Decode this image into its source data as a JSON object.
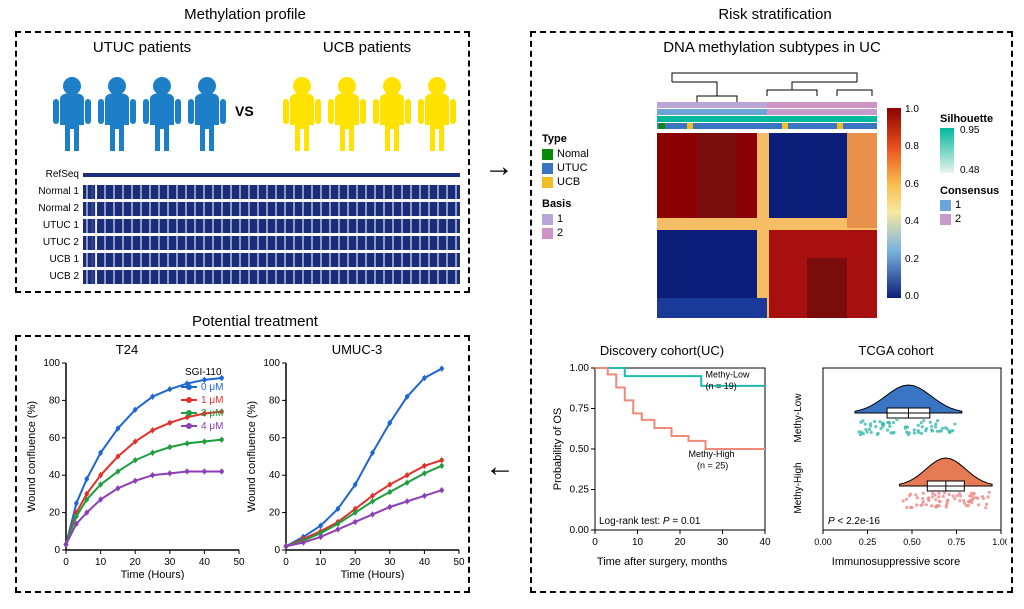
{
  "titles": {
    "methylation": "Methylation profile",
    "risk": "Risk stratification",
    "treatment": "Potential treatment",
    "utuc": "UTUC patients",
    "ucb": "UCB patients",
    "vs": "VS",
    "subtypes": "DNA methylation subtypes in UC"
  },
  "tracks": {
    "labels": [
      "RefSeq",
      "Normal 1",
      "Normal 2",
      "UTUC 1",
      "UTUC 2",
      "UCB 1",
      "UCB 2"
    ]
  },
  "people": {
    "utuc_color": "#1e7fc9",
    "ucb_color": "#ffe200"
  },
  "heatmap": {
    "type_label": "Type",
    "basis_label": "Basis",
    "silhouette_label": "Silhouette",
    "consensus_label": "Consensus",
    "type_items": [
      {
        "label": "Nomal",
        "color": "#0a8a0a"
      },
      {
        "label": "UTUC",
        "color": "#3a75c4"
      },
      {
        "label": "UCB",
        "color": "#f0bd27"
      }
    ],
    "basis_items": [
      {
        "label": "1",
        "color": "#b9a6d6"
      },
      {
        "label": "2",
        "color": "#cf94c6"
      }
    ],
    "consensus_items": [
      {
        "label": "1",
        "color": "#6da5d9"
      },
      {
        "label": "2",
        "color": "#c89acb"
      }
    ],
    "silhouette_vals": [
      "0.95",
      "0.48"
    ],
    "colorbar": {
      "ticks": [
        "1.0",
        "0.8",
        "0.6",
        "0.4",
        "0.2",
        "0.0"
      ],
      "colors": [
        "#8b0000",
        "#e84d1a",
        "#f9bd4f",
        "#f6e8a0",
        "#7ab3e0",
        "#0b1f7a"
      ]
    }
  },
  "km": {
    "title": "Discovery cohort(UC)",
    "ylabel": "Probability of OS",
    "xlabel": "Time after surgery, months",
    "low_label": "Methy-Low",
    "low_n": "(n = 19)",
    "high_label": "Methy-High",
    "high_n": "(n = 25)",
    "test": "Log-rank  test: ",
    "pval": "P = 0.01",
    "low_color": "#1fbab0",
    "high_color": "#ef8a7a",
    "xticks": [
      "0",
      "10",
      "20",
      "30",
      "40"
    ],
    "yticks": [
      "0.00",
      "0.25",
      "0.50",
      "0.75",
      "1.00"
    ],
    "low_points": [
      [
        0,
        1.0
      ],
      [
        6,
        1.0
      ],
      [
        7,
        0.95
      ],
      [
        12,
        0.95
      ],
      [
        18,
        0.95
      ],
      [
        25,
        0.89
      ],
      [
        40,
        0.89
      ]
    ],
    "high_points": [
      [
        0,
        1.0
      ],
      [
        3,
        0.96
      ],
      [
        5,
        0.88
      ],
      [
        7,
        0.8
      ],
      [
        9,
        0.72
      ],
      [
        11,
        0.68
      ],
      [
        14,
        0.63
      ],
      [
        18,
        0.58
      ],
      [
        22,
        0.55
      ],
      [
        26,
        0.5
      ],
      [
        40,
        0.5
      ]
    ]
  },
  "violin": {
    "title": "TCGA  cohort",
    "xlabel": "Immunosuppressive score",
    "ylabel_low": "Methy-Low",
    "ylabel_high": "Methy-High",
    "pval": "P < 2.2e-16",
    "xticks": [
      "0.00",
      "0.25",
      "0.50",
      "0.75",
      "1.00"
    ],
    "low_color": "#3a75c4",
    "high_color": "#e67a54",
    "low_point_color": "#3bb9b0",
    "high_point_color": "#ef8a8a"
  },
  "growth": {
    "t24_title": "T24",
    "umuc_title": "UMUC-3",
    "legend_title": "SGI-110",
    "ylabel": "Wound confluence (%)",
    "xlabel": "Time (Hours)",
    "xticks": [
      "0",
      "10",
      "20",
      "30",
      "40",
      "50"
    ],
    "yticks": [
      "0",
      "20",
      "40",
      "60",
      "80",
      "100"
    ],
    "doses": [
      {
        "label": "0 μM",
        "color": "#1e66d0"
      },
      {
        "label": "1 μM",
        "color": "#e0312b"
      },
      {
        "label": "2 μM",
        "color": "#1e9e3e"
      },
      {
        "label": "4 μM",
        "color": "#8e3fb5"
      }
    ],
    "t24": {
      "s0": [
        [
          0,
          3
        ],
        [
          3,
          25
        ],
        [
          6,
          38
        ],
        [
          10,
          52
        ],
        [
          15,
          65
        ],
        [
          20,
          75
        ],
        [
          25,
          82
        ],
        [
          30,
          86
        ],
        [
          35,
          89
        ],
        [
          40,
          91
        ],
        [
          45,
          92
        ]
      ],
      "s1": [
        [
          0,
          3
        ],
        [
          3,
          20
        ],
        [
          6,
          30
        ],
        [
          10,
          40
        ],
        [
          15,
          50
        ],
        [
          20,
          58
        ],
        [
          25,
          64
        ],
        [
          30,
          68
        ],
        [
          35,
          71
        ],
        [
          40,
          73
        ],
        [
          45,
          74
        ]
      ],
      "s2": [
        [
          0,
          3
        ],
        [
          3,
          18
        ],
        [
          6,
          27
        ],
        [
          10,
          35
        ],
        [
          15,
          42
        ],
        [
          20,
          48
        ],
        [
          25,
          52
        ],
        [
          30,
          55
        ],
        [
          35,
          57
        ],
        [
          40,
          58
        ],
        [
          45,
          59
        ]
      ],
      "s4": [
        [
          0,
          3
        ],
        [
          3,
          14
        ],
        [
          6,
          20
        ],
        [
          10,
          27
        ],
        [
          15,
          33
        ],
        [
          20,
          37
        ],
        [
          25,
          40
        ],
        [
          30,
          41
        ],
        [
          35,
          42
        ],
        [
          40,
          42
        ],
        [
          45,
          42
        ]
      ]
    },
    "umuc": {
      "s0": [
        [
          0,
          2
        ],
        [
          5,
          7
        ],
        [
          10,
          13
        ],
        [
          15,
          22
        ],
        [
          20,
          35
        ],
        [
          25,
          52
        ],
        [
          30,
          68
        ],
        [
          35,
          82
        ],
        [
          40,
          92
        ],
        [
          45,
          97
        ]
      ],
      "s1": [
        [
          0,
          2
        ],
        [
          5,
          6
        ],
        [
          10,
          10
        ],
        [
          15,
          15
        ],
        [
          20,
          22
        ],
        [
          25,
          29
        ],
        [
          30,
          35
        ],
        [
          35,
          40
        ],
        [
          40,
          45
        ],
        [
          45,
          48
        ]
      ],
      "s2": [
        [
          0,
          2
        ],
        [
          5,
          5
        ],
        [
          10,
          9
        ],
        [
          15,
          14
        ],
        [
          20,
          20
        ],
        [
          25,
          26
        ],
        [
          30,
          31
        ],
        [
          35,
          36
        ],
        [
          40,
          41
        ],
        [
          45,
          45
        ]
      ],
      "s4": [
        [
          0,
          2
        ],
        [
          5,
          4
        ],
        [
          10,
          7
        ],
        [
          15,
          11
        ],
        [
          20,
          15
        ],
        [
          25,
          19
        ],
        [
          30,
          23
        ],
        [
          35,
          26
        ],
        [
          40,
          29
        ],
        [
          45,
          32
        ]
      ]
    }
  }
}
